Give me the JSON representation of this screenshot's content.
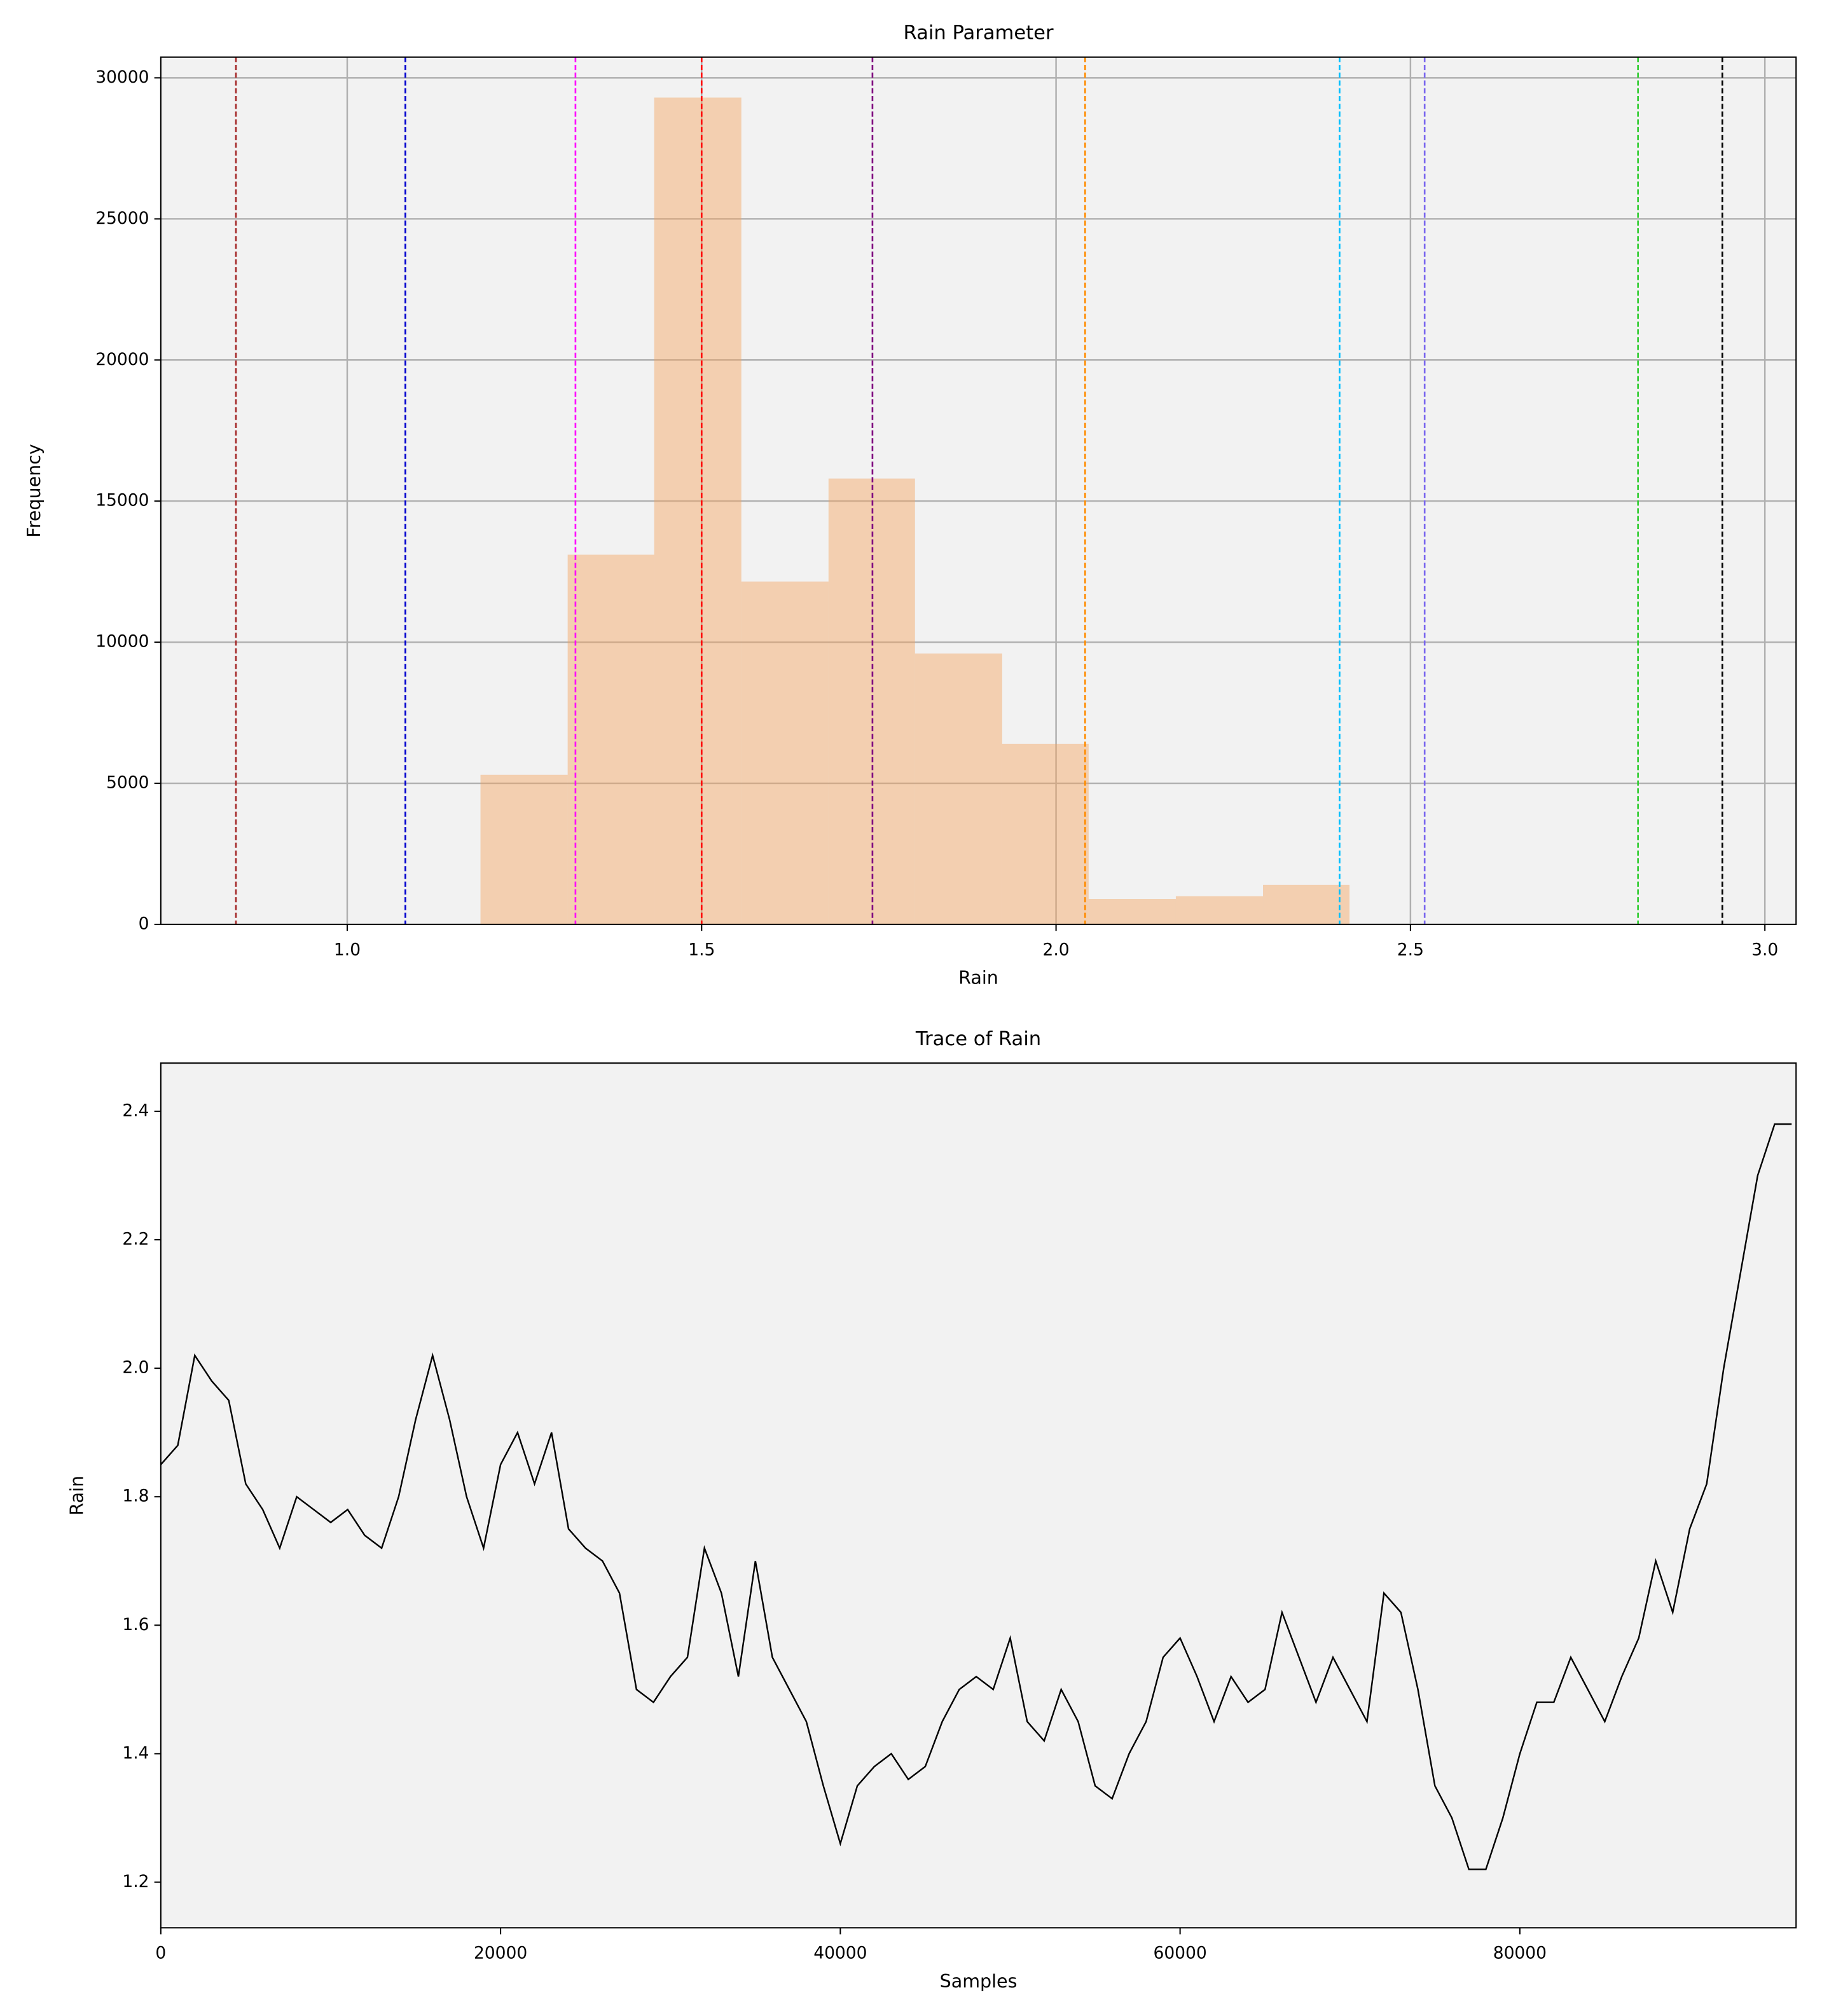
{
  "chart_data": [
    {
      "type": "histogram",
      "title": "Rain Parameter",
      "x_label": "Rain",
      "y_label": "Frequency",
      "bins": [
        1.188,
        1.311,
        1.433,
        1.556,
        1.679,
        1.801,
        1.924,
        2.046,
        2.169,
        2.292,
        2.414
      ],
      "values": [
        5300,
        13100,
        29300,
        12150,
        15800,
        9600,
        6400,
        900,
        1000,
        1400
      ],
      "color": "#f4a460",
      "vlines": [
        {
          "value": 0.843,
          "color": "#a52a2a"
        },
        {
          "value": 1.082,
          "color": "#0000cd"
        },
        {
          "value": 1.322,
          "color": "#ff00ff"
        },
        {
          "value": 1.5,
          "color": "#ff0000"
        },
        {
          "value": 1.741,
          "color": "#800080"
        },
        {
          "value": 2.041,
          "color": "#ff8c00"
        },
        {
          "value": 2.4,
          "color": "#00bfff"
        },
        {
          "value": 2.52,
          "color": "#7b68ee"
        },
        {
          "value": 2.821,
          "color": "#32cd32"
        },
        {
          "value": 2.94,
          "color": "#000000"
        }
      ],
      "xlim": [
        0.737,
        3.044
      ],
      "xticks": [
        {
          "value": 1.0,
          "label": "1.0"
        },
        {
          "value": 1.5,
          "label": "1.5"
        },
        {
          "value": 2.0,
          "label": "2.0"
        },
        {
          "value": 2.5,
          "label": "2.5"
        },
        {
          "value": 3.0,
          "label": "3.0"
        }
      ],
      "ylim": [
        0,
        30735
      ],
      "yticks": [
        0,
        5000,
        10000,
        15000,
        20000,
        25000,
        30000
      ],
      "grid": true
    },
    {
      "type": "line",
      "title": "Trace of Rain",
      "x_label": "Samples",
      "y_label": "Rain",
      "x": [
        0,
        1000,
        2000,
        3000,
        4000,
        5000,
        6000,
        7000,
        8000,
        9000,
        10000,
        11000,
        12000,
        13000,
        14000,
        15000,
        16000,
        17000,
        18000,
        19000,
        20000,
        21000,
        22000,
        23000,
        24000,
        25000,
        26000,
        27000,
        28000,
        29000,
        30000,
        31000,
        32000,
        33000,
        34000,
        35000,
        36000,
        37000,
        38000,
        39000,
        40000,
        41000,
        42000,
        43000,
        44000,
        45000,
        46000,
        47000,
        48000,
        49000,
        50000,
        51000,
        52000,
        53000,
        54000,
        55000,
        56000,
        57000,
        58000,
        59000,
        60000,
        61000,
        62000,
        63000,
        64000,
        65000,
        66000,
        67000,
        68000,
        69000,
        70000,
        71000,
        72000,
        73000,
        74000,
        75000,
        76000,
        77000,
        78000,
        79000,
        80000,
        81000,
        82000,
        83000,
        84000,
        85000,
        86000,
        87000,
        88000,
        89000,
        90000,
        91000,
        92000,
        93000,
        94000,
        95000,
        96000
      ],
      "values": [
        1.85,
        1.88,
        2.02,
        1.98,
        1.95,
        1.82,
        1.78,
        1.72,
        1.8,
        1.78,
        1.76,
        1.78,
        1.74,
        1.72,
        1.8,
        1.92,
        2.02,
        1.92,
        1.8,
        1.72,
        1.85,
        1.9,
        1.82,
        1.9,
        1.75,
        1.72,
        1.7,
        1.65,
        1.5,
        1.48,
        1.52,
        1.55,
        1.72,
        1.65,
        1.52,
        1.7,
        1.55,
        1.5,
        1.45,
        1.35,
        1.26,
        1.35,
        1.38,
        1.4,
        1.36,
        1.38,
        1.45,
        1.5,
        1.52,
        1.5,
        1.58,
        1.45,
        1.42,
        1.5,
        1.45,
        1.35,
        1.33,
        1.4,
        1.45,
        1.55,
        1.58,
        1.52,
        1.45,
        1.52,
        1.48,
        1.5,
        1.62,
        1.55,
        1.48,
        1.55,
        1.5,
        1.45,
        1.65,
        1.62,
        1.5,
        1.35,
        1.3,
        1.22,
        1.22,
        1.3,
        1.4,
        1.48,
        1.48,
        1.55,
        1.5,
        1.45,
        1.52,
        1.58,
        1.7,
        1.62,
        1.75,
        1.82,
        2.0,
        2.15,
        2.3,
        2.38,
        2.38
      ],
      "color": "#000000",
      "xlim": [
        0,
        96260
      ],
      "xticks": [
        0,
        20000,
        40000,
        60000,
        80000
      ],
      "ylim": [
        1.129,
        2.475
      ],
      "yticks": [
        {
          "value": 1.2,
          "label": "1.2"
        },
        {
          "value": 1.4,
          "label": "1.4"
        },
        {
          "value": 1.6,
          "label": "1.6"
        },
        {
          "value": 1.8,
          "label": "1.8"
        },
        {
          "value": 2.0,
          "label": "2.0"
        },
        {
          "value": 2.2,
          "label": "2.2"
        },
        {
          "value": 2.4,
          "label": "2.4"
        }
      ],
      "grid": false
    }
  ]
}
